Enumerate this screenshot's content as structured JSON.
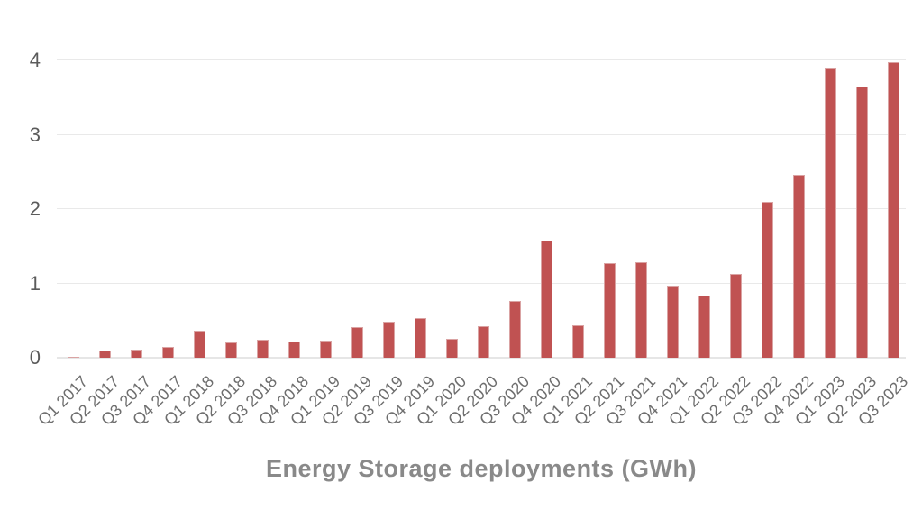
{
  "chart_data": {
    "type": "bar",
    "title": "Energy Storage deployments (GWh)",
    "xlabel": "",
    "ylabel": "",
    "categories": [
      "Q1 2017",
      "Q2 2017",
      "Q3 2017",
      "Q4 2017",
      "Q1 2018",
      "Q2 2018",
      "Q3 2018",
      "Q4 2018",
      "Q1 2019",
      "Q2 2019",
      "Q3 2019",
      "Q4 2019",
      "Q1 2020",
      "Q2 2020",
      "Q3 2020",
      "Q4 2020",
      "Q1 2021",
      "Q2 2021",
      "Q3 2021",
      "Q4 2021",
      "Q1 2022",
      "Q2 2022",
      "Q3 2022",
      "Q4 2022",
      "Q1 2023",
      "Q2 2023",
      "Q3 2023"
    ],
    "values": [
      0.01,
      0.1,
      0.11,
      0.14,
      0.37,
      0.21,
      0.24,
      0.22,
      0.23,
      0.41,
      0.48,
      0.53,
      0.26,
      0.42,
      0.76,
      1.58,
      0.44,
      1.27,
      1.29,
      0.97,
      0.84,
      1.13,
      2.1,
      2.46,
      3.89,
      3.65,
      3.98
    ],
    "ylim": [
      0,
      4
    ],
    "yticks": [
      0,
      1,
      2,
      3,
      4
    ],
    "ytick_labels": [
      "0",
      "1",
      "2",
      "3",
      "4"
    ],
    "grid": "horizontal",
    "legend": "none",
    "colors": {
      "bar_fill": "#c05252",
      "bar_border": "#daa3a3",
      "gridline": "#e9e9e9",
      "baseline": "#e6e6e6",
      "ytick_text": "#5b5b5b",
      "xtick_text": "#6e6e6e",
      "title_text": "#898989",
      "background": "#ffffff"
    }
  }
}
